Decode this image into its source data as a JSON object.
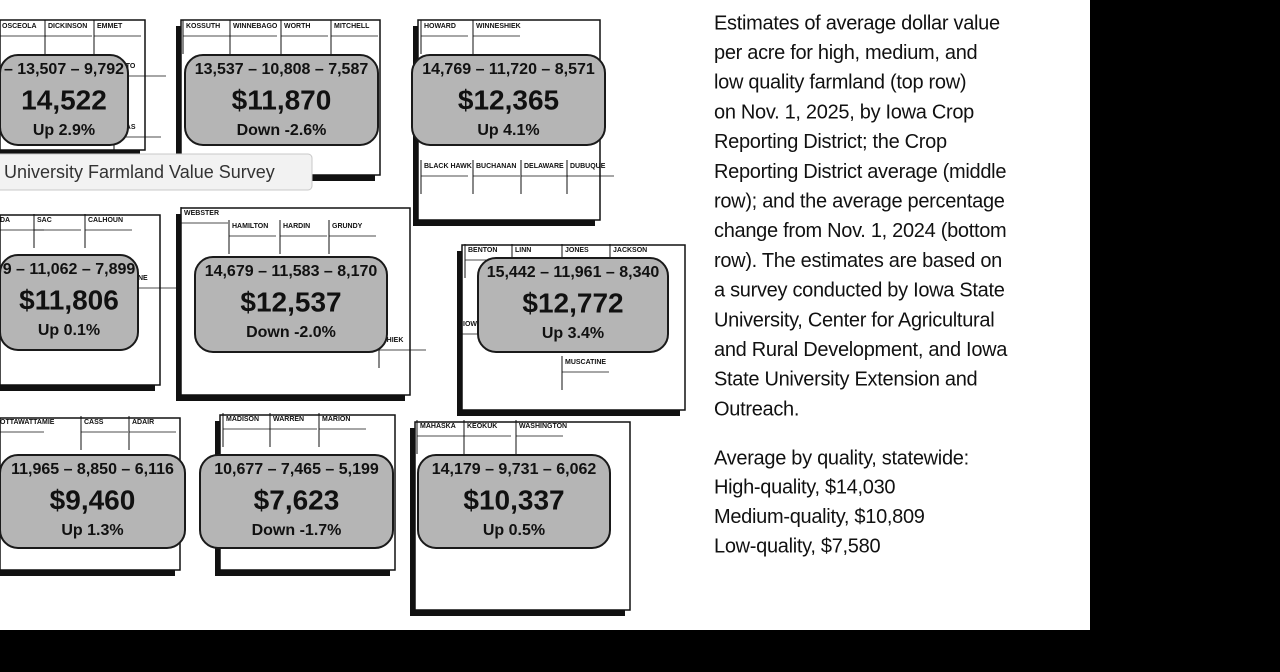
{
  "districts": [
    {
      "labels": [
        "OSCEOLA",
        "DICKINSON",
        "EMMET",
        "LTO",
        "NTAS"
      ],
      "range": "– 13,507 – 9,792",
      "average": "14,522",
      "change": "Up 2.9%"
    },
    {
      "labels": [
        "KOSSUTH",
        "WINNEBAGO",
        "WORTH",
        "MITCHELL"
      ],
      "range": "13,537 – 10,808 – 7,587",
      "average": "$11,870",
      "change": "Down -2.6%"
    },
    {
      "labels": [
        "HOWARD",
        "WINNESHIEK",
        "BLACK HAWK",
        "BUCHANAN",
        "DELAWARE",
        "DUBUQUE"
      ],
      "range": "14,769 – 11,720 – 8,571",
      "average": "$12,365",
      "change": "Up 4.1%"
    },
    {
      "labels": [
        "DA",
        "SAC",
        "CALHOUN",
        "NE"
      ],
      "range": "9 – 11,062 – 7,899",
      "average": "$11,806",
      "change": "Up 0.1%"
    },
    {
      "labels": [
        "WEBSTER",
        "HAMILTON",
        "HARDIN",
        "GRUNDY",
        "SHIEK"
      ],
      "range": "14,679 – 11,583 – 8,170",
      "average": "$12,537",
      "change": "Down -2.0%"
    },
    {
      "labels": [
        "BENTON",
        "LINN",
        "JONES",
        "JACKSON",
        "IOW",
        "MUSCATINE"
      ],
      "range": "15,442 – 11,961 – 8,340",
      "average": "$12,772",
      "change": "Up 3.4%"
    },
    {
      "labels": [
        "OTTAWATTAMIE",
        "CASS",
        "ADAIR"
      ],
      "range": "11,965 – 8,850 – 6,116",
      "average": "$9,460",
      "change": "Up 1.3%"
    },
    {
      "labels": [
        "MADISON",
        "WARREN",
        "MARION"
      ],
      "range": "10,677 – 7,465 – 5,199",
      "average": "$7,623",
      "change": "Down -1.7%"
    },
    {
      "labels": [
        "MAHASKA",
        "KEOKUK",
        "WASHINGTON"
      ],
      "range": "14,179 – 9,731 – 6,062",
      "average": "$10,337",
      "change": "Up 0.5%"
    }
  ],
  "tooltip": "University Farmland Value Survey",
  "description": [
    "Estimates of average dollar value",
    "per acre for high, medium, and",
    "low quality farmland (top row)",
    "on Nov. 1, 2025, by Iowa Crop",
    "Reporting District; the Crop",
    "Reporting District average (middle",
    "row); and the average percentage",
    "change from Nov. 1, 2024 (bottom",
    "row). The estimates are based on",
    "a survey conducted by Iowa State",
    "University, Center for Agricultural",
    "and Rural Development, and Iowa",
    "State University Extension and",
    "Outreach."
  ],
  "statewide": {
    "heading": "Average by quality, statewide:",
    "items": [
      "High-quality, $14,030",
      "Medium-quality, $10,809",
      "Low-quality, $7,580"
    ]
  }
}
